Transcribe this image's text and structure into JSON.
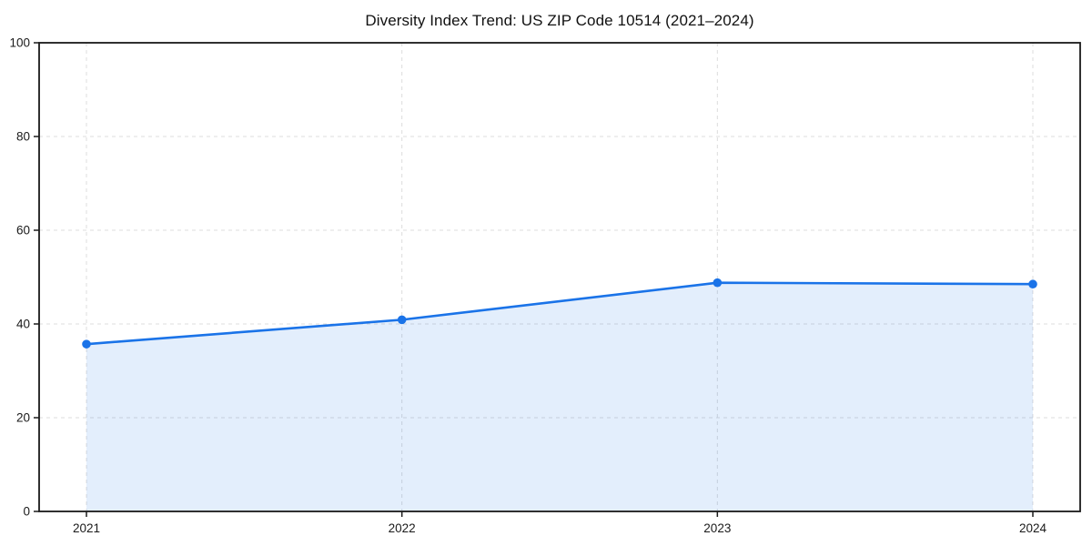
{
  "chart_data": {
    "type": "area",
    "title": "Diversity Index Trend: US ZIP Code 10514 (2021–2024)",
    "x": [
      2021,
      2022,
      2023,
      2024
    ],
    "series": [
      {
        "name": "Diversity Index",
        "values": [
          35.7,
          40.9,
          48.8,
          48.5
        ]
      }
    ],
    "xticks": [
      2021,
      2022,
      2023,
      2024
    ],
    "xtick_labels": [
      "2021",
      "2022",
      "2023",
      "2024"
    ],
    "yticks": [
      0,
      20,
      40,
      60,
      80,
      100
    ],
    "ytick_labels": [
      "0",
      "20",
      "40",
      "60",
      "80",
      "100"
    ],
    "xlim": [
      2020.85,
      2024.15
    ],
    "ylim": [
      0,
      100
    ],
    "xlabel": "",
    "ylabel": "",
    "grid": true,
    "grid_style": "dashed",
    "legend_position": "none",
    "colors": {
      "line": "#1a73e8",
      "marker": "#1a73e8",
      "area_fill": "rgba(26,115,232,0.12)",
      "gridline": "#dcdcdc",
      "spine": "#1a1a1a",
      "tick_label": "#1a1a1a",
      "background": "#ffffff"
    }
  }
}
